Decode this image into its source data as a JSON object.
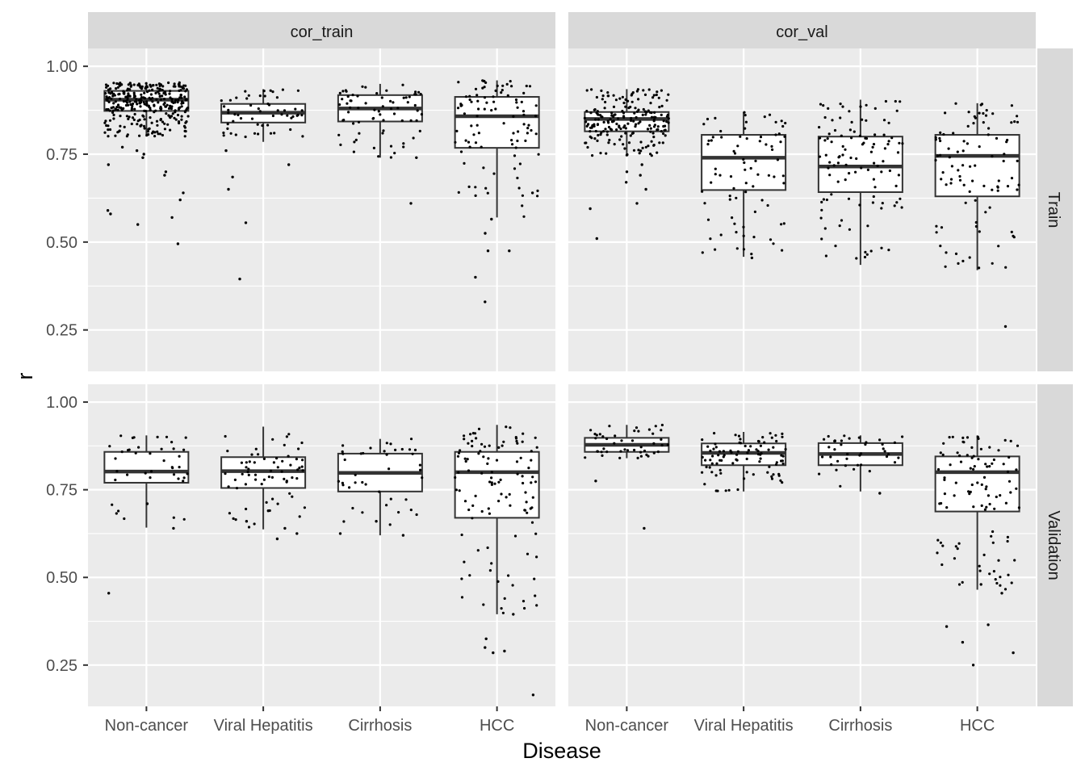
{
  "chart_data": {
    "type": "box",
    "facet_cols": [
      "cor_train",
      "cor_val"
    ],
    "facet_rows": [
      "Train",
      "Validation"
    ],
    "categories": [
      "Non-cancer",
      "Viral Hepatitis",
      "Cirrhosis",
      "HCC"
    ],
    "xlabel": "Disease",
    "ylabel": "r",
    "ylim": [
      0.13,
      1.05
    ],
    "yticks": [
      0.25,
      0.5,
      0.75,
      1.0
    ],
    "ytick_labels": [
      "0.25",
      "0.50",
      "0.75",
      "1.00"
    ],
    "grid": true,
    "colors": {
      "panel_bg": "#ebebeb",
      "strip_bg": "#d9d9d9",
      "grid": "#ffffff",
      "box_fill": "#ffffff",
      "box_line": "#333333",
      "point": "#000000"
    },
    "boxes": [
      {
        "col": "cor_train",
        "row": "Train",
        "stats": [
          {
            "category": "Non-cancer",
            "min": 0.8,
            "q1": 0.873,
            "median": 0.905,
            "q3": 0.93,
            "max": 0.955
          },
          {
            "category": "Viral Hepatitis",
            "min": 0.785,
            "q1": 0.84,
            "median": 0.868,
            "q3": 0.893,
            "max": 0.935
          },
          {
            "category": "Cirrhosis",
            "min": 0.74,
            "q1": 0.843,
            "median": 0.88,
            "q3": 0.918,
            "max": 0.95
          },
          {
            "category": "HCC",
            "min": 0.57,
            "q1": 0.768,
            "median": 0.858,
            "q3": 0.913,
            "max": 0.96
          }
        ]
      },
      {
        "col": "cor_val",
        "row": "Train",
        "stats": [
          {
            "category": "Non-cancer",
            "min": 0.745,
            "q1": 0.815,
            "median": 0.85,
            "q3": 0.87,
            "max": 0.935
          },
          {
            "category": "Viral Hepatitis",
            "min": 0.458,
            "q1": 0.648,
            "median": 0.74,
            "q3": 0.805,
            "max": 0.87
          },
          {
            "category": "Cirrhosis",
            "min": 0.435,
            "q1": 0.642,
            "median": 0.715,
            "q3": 0.8,
            "max": 0.905
          },
          {
            "category": "HCC",
            "min": 0.42,
            "q1": 0.63,
            "median": 0.745,
            "q3": 0.805,
            "max": 0.895
          }
        ]
      },
      {
        "col": "cor_train",
        "row": "Validation",
        "stats": [
          {
            "category": "Non-cancer",
            "min": 0.642,
            "q1": 0.77,
            "median": 0.802,
            "q3": 0.858,
            "max": 0.905
          },
          {
            "category": "Viral Hepatitis",
            "min": 0.637,
            "q1": 0.755,
            "median": 0.803,
            "q3": 0.843,
            "max": 0.93
          },
          {
            "category": "Cirrhosis",
            "min": 0.62,
            "q1": 0.745,
            "median": 0.798,
            "q3": 0.853,
            "max": 0.895
          },
          {
            "category": "HCC",
            "min": 0.395,
            "q1": 0.67,
            "median": 0.8,
            "q3": 0.858,
            "max": 0.935
          }
        ]
      },
      {
        "col": "cor_val",
        "row": "Validation",
        "stats": [
          {
            "category": "Non-cancer",
            "min": 0.84,
            "q1": 0.858,
            "median": 0.878,
            "q3": 0.898,
            "max": 0.935
          },
          {
            "category": "Viral Hepatitis",
            "min": 0.745,
            "q1": 0.82,
            "median": 0.855,
            "q3": 0.882,
            "max": 0.915
          },
          {
            "category": "Cirrhosis",
            "min": 0.745,
            "q1": 0.82,
            "median": 0.852,
            "q3": 0.883,
            "max": 0.905
          },
          {
            "category": "HCC",
            "min": 0.465,
            "q1": 0.688,
            "median": 0.8,
            "q3": 0.845,
            "max": 0.905
          }
        ]
      }
    ],
    "outliers": [
      {
        "col": "cor_train",
        "row": "Train",
        "category": "Non-cancer",
        "values": [
          0.62,
          0.59,
          0.57,
          0.55,
          0.58,
          0.495,
          0.64,
          0.69,
          0.7,
          0.72,
          0.74,
          0.75,
          0.76,
          0.77
        ]
      },
      {
        "col": "cor_train",
        "row": "Train",
        "category": "Viral Hepatitis",
        "values": [
          0.555,
          0.395,
          0.65,
          0.685,
          0.72,
          0.76
        ]
      },
      {
        "col": "cor_train",
        "row": "Train",
        "category": "Cirrhosis",
        "values": [
          0.61,
          0.74
        ]
      },
      {
        "col": "cor_train",
        "row": "Train",
        "category": "HCC",
        "values": [
          0.33,
          0.4,
          0.475,
          0.475,
          0.525,
          0.565,
          0.64
        ]
      },
      {
        "col": "cor_val",
        "row": "Train",
        "category": "Non-cancer",
        "values": [
          0.595,
          0.51,
          0.61,
          0.65,
          0.67,
          0.69,
          0.7,
          0.72
        ]
      },
      {
        "col": "cor_val",
        "row": "Train",
        "category": "Viral Hepatitis",
        "values": [
          0.455
        ]
      },
      {
        "col": "cor_val",
        "row": "Train",
        "category": "HCC",
        "values": [
          0.26
        ]
      },
      {
        "col": "cor_train",
        "row": "Validation",
        "category": "Non-cancer",
        "values": [
          0.455,
          0.64,
          0.71
        ]
      },
      {
        "col": "cor_train",
        "row": "Validation",
        "category": "Viral Hepatitis",
        "values": [
          0.61,
          0.625,
          0.64,
          0.66,
          0.69
        ]
      },
      {
        "col": "cor_train",
        "row": "Validation",
        "category": "Cirrhosis",
        "values": [
          0.62,
          0.625,
          0.66
        ]
      },
      {
        "col": "cor_train",
        "row": "Validation",
        "category": "HCC",
        "values": [
          0.165,
          0.285,
          0.29,
          0.3,
          0.325,
          0.395
        ]
      },
      {
        "col": "cor_val",
        "row": "Validation",
        "category": "Non-cancer",
        "values": [
          0.64,
          0.775
        ]
      },
      {
        "col": "cor_val",
        "row": "Validation",
        "category": "Cirrhosis",
        "values": [
          0.74
        ]
      },
      {
        "col": "cor_val",
        "row": "Validation",
        "category": "HCC",
        "values": [
          0.25,
          0.285,
          0.315,
          0.36,
          0.365,
          0.455,
          0.48
        ]
      }
    ]
  }
}
